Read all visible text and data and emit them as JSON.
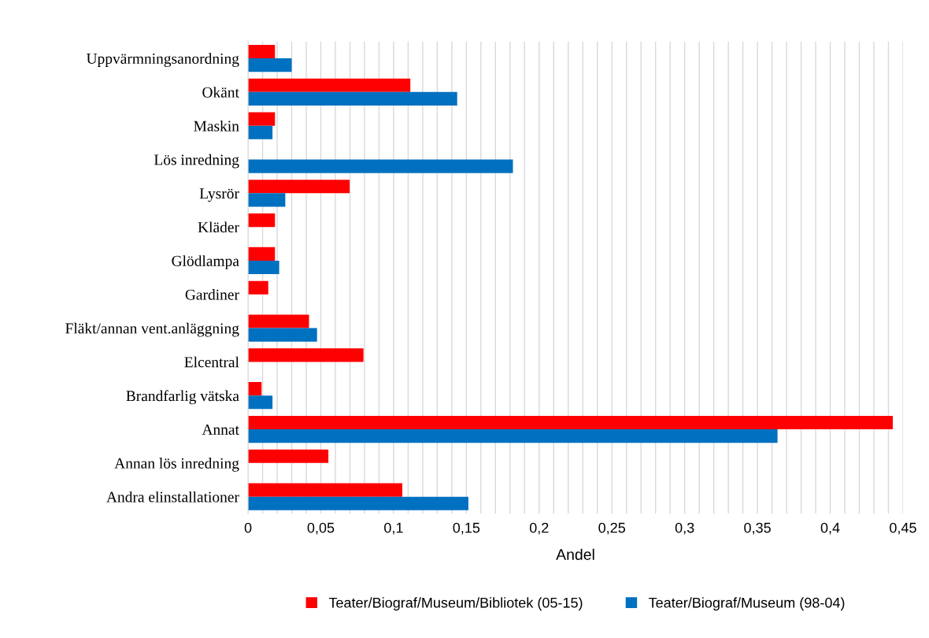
{
  "chart_data": {
    "type": "bar",
    "orientation": "horizontal",
    "xlabel": "Andel",
    "categories": [
      "Uppvärmningsanordning",
      "Okänt",
      "Maskin",
      "Lös inredning",
      "Lysrör",
      "Kläder",
      "Glödlampa",
      "Gardiner",
      "Fläkt/annan vent.anläggning",
      "Elcentral",
      "Brandfarlig vätska",
      "Annat",
      "Annan lös inredning",
      "Andra elinstallationer"
    ],
    "series": [
      {
        "name": "Teater/Biograf/Museum/Bibliotek (05-15)",
        "color": "#ff0000",
        "values": [
          0.0185,
          0.1115,
          0.0185,
          null,
          0.0698,
          0.0185,
          0.0185,
          0.0139,
          0.0419,
          0.0793,
          0.0093,
          0.443,
          0.0552,
          0.106
        ]
      },
      {
        "name": "Teater/Biograf/Museum (98-04)",
        "color": "#0070c0",
        "values": [
          0.03,
          0.1437,
          0.0168,
          0.182,
          0.0256,
          null,
          0.0214,
          null,
          0.0474,
          null,
          0.0168,
          0.3638,
          null,
          0.1514
        ]
      }
    ],
    "xlim": [
      0,
      0.45
    ],
    "xticks": [
      0,
      {
        "value": 0.01,
        "label": null
      },
      {
        "value": 0.02,
        "label": null
      },
      {
        "value": 0.03,
        "label": null
      },
      {
        "value": 0.04,
        "label": null
      },
      {
        "value": 0.05,
        "label": "0,05"
      },
      {
        "value": 0.06,
        "label": null
      },
      {
        "value": 0.07,
        "label": null
      },
      {
        "value": 0.08,
        "label": null
      },
      {
        "value": 0.09,
        "label": null
      },
      {
        "value": 0.1,
        "label": "0,1"
      },
      {
        "value": 0.11,
        "label": null
      },
      {
        "value": 0.12,
        "label": null
      },
      {
        "value": 0.13,
        "label": null
      },
      {
        "value": 0.14,
        "label": null
      },
      {
        "value": 0.15,
        "label": "0,15"
      },
      {
        "value": 0.16,
        "label": null
      },
      {
        "value": 0.17,
        "label": null
      },
      {
        "value": 0.18,
        "label": null
      },
      {
        "value": 0.19,
        "label": null
      },
      {
        "value": 0.2,
        "label": "0,2"
      },
      {
        "value": 0.21,
        "label": null
      },
      {
        "value": 0.22,
        "label": null
      },
      {
        "value": 0.23,
        "label": null
      },
      {
        "value": 0.24,
        "label": null
      },
      {
        "value": 0.25,
        "label": "0,25"
      },
      {
        "value": 0.26,
        "label": null
      },
      {
        "value": 0.27,
        "label": null
      },
      {
        "value": 0.28,
        "label": null
      },
      {
        "value": 0.29,
        "label": null
      },
      {
        "value": 0.3,
        "label": "0,3"
      },
      {
        "value": 0.31,
        "label": null
      },
      {
        "value": 0.32,
        "label": null
      },
      {
        "value": 0.33,
        "label": null
      },
      {
        "value": 0.34,
        "label": null
      },
      {
        "value": 0.35,
        "label": "0,35"
      },
      {
        "value": 0.36,
        "label": null
      },
      {
        "value": 0.37,
        "label": null
      },
      {
        "value": 0.38,
        "label": null
      },
      {
        "value": 0.39,
        "label": null
      },
      {
        "value": 0.4,
        "label": "0,4"
      },
      {
        "value": 0.41,
        "label": null
      },
      {
        "value": 0.42,
        "label": null
      },
      {
        "value": 0.43,
        "label": null
      },
      {
        "value": 0.44,
        "label": null
      },
      {
        "value": 0.45,
        "label": "0,45"
      }
    ],
    "grid": "x",
    "legend": "bottom"
  }
}
